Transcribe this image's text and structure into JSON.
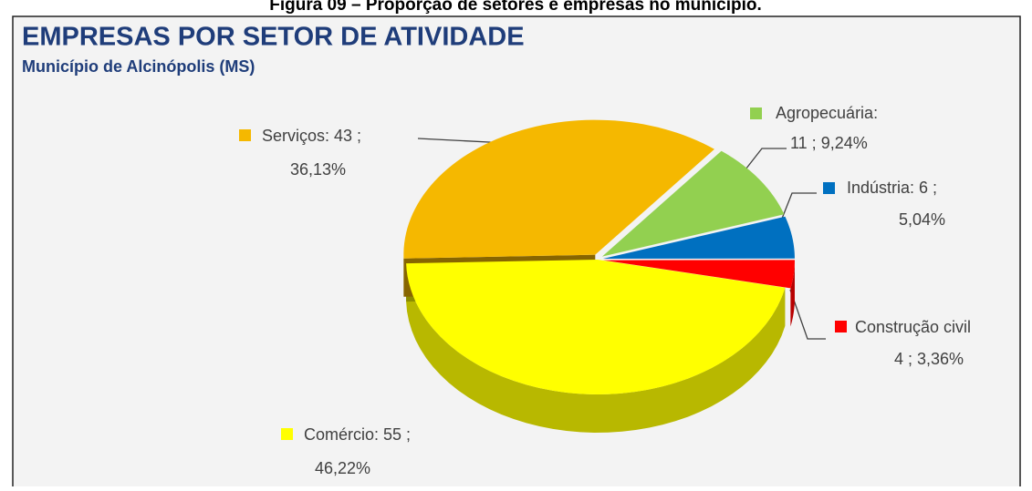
{
  "caption": "Figura 09 – Proporção de setores e empresas no município.",
  "chart_data": {
    "type": "pie3d",
    "title": "EMPRESAS POR SETOR DE ATIVIDADE",
    "subtitle": "Município  de Alcinópolis  (MS)",
    "values": [
      55,
      43,
      11,
      6,
      4
    ],
    "value_labels": [
      [
        "Comércio: 55 ;",
        "46,22%"
      ],
      [
        "Serviços: 43 ;",
        "36,13%"
      ],
      [
        "Agropecuária:",
        "11 ; 9,24%"
      ],
      [
        "Indústria:  6 ;",
        "5,04%"
      ],
      [
        "Construção civil",
        "4 ; 3,36%"
      ]
    ],
    "colors": [
      "#ffff00",
      "#f5b800",
      "#92d050",
      "#0070c0",
      "#ff0000"
    ]
  }
}
